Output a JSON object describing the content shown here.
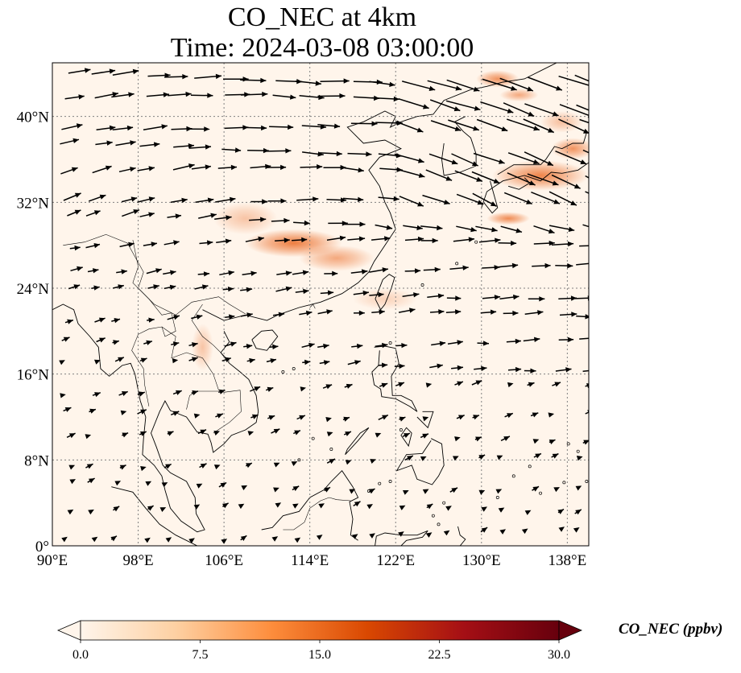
{
  "title": {
    "line1": "CO_NEC at 4km",
    "line2": "Time: 2024-03-08 03:00:00"
  },
  "map": {
    "extent": {
      "lon": [
        90,
        140
      ],
      "lat": [
        0,
        45
      ]
    },
    "lon_ticks": [
      90,
      98,
      106,
      114,
      122,
      130,
      138
    ],
    "lon_tick_labels": [
      "90°E",
      "98°E",
      "106°E",
      "114°E",
      "122°E",
      "130°E",
      "138°E"
    ],
    "lat_ticks": [
      0,
      8,
      16,
      24,
      32,
      40
    ],
    "lat_tick_labels": [
      "0°",
      "8°N",
      "16°N",
      "24°N",
      "32°N",
      "40°N"
    ],
    "gridlines": true,
    "background_color": "#fff5eb",
    "plume_color": "#e8590c",
    "plumes": [
      {
        "lon": 112.5,
        "lat": 28.2,
        "rlon": 4.5,
        "rlat": 1.3,
        "intensity": 0.85
      },
      {
        "lon": 116.5,
        "lat": 26.8,
        "rlon": 3.5,
        "rlat": 1.2,
        "intensity": 0.55
      },
      {
        "lon": 108.0,
        "lat": 30.5,
        "rlon": 3.0,
        "rlat": 1.5,
        "intensity": 0.35
      },
      {
        "lon": 104.0,
        "lat": 18.5,
        "rlon": 1.0,
        "rlat": 2.2,
        "intensity": 0.35
      },
      {
        "lon": 135.5,
        "lat": 34.5,
        "rlon": 4.5,
        "rlat": 1.4,
        "intensity": 0.8
      },
      {
        "lon": 138.5,
        "lat": 37.0,
        "rlon": 2.0,
        "rlat": 1.0,
        "intensity": 0.7
      },
      {
        "lon": 132.5,
        "lat": 30.5,
        "rlon": 2.0,
        "rlat": 0.6,
        "intensity": 0.75
      },
      {
        "lon": 131.5,
        "lat": 43.5,
        "rlon": 2.0,
        "rlat": 0.8,
        "intensity": 0.7
      },
      {
        "lon": 133.5,
        "lat": 42.0,
        "rlon": 1.8,
        "rlat": 0.6,
        "intensity": 0.55
      },
      {
        "lon": 137.5,
        "lat": 39.5,
        "rlon": 2.0,
        "rlat": 1.0,
        "intensity": 0.4
      },
      {
        "lon": 121.0,
        "lat": 23.0,
        "rlon": 3.0,
        "rlat": 1.0,
        "intensity": 0.25
      }
    ]
  },
  "colorbar": {
    "label": "CO_NEC (ppbv)",
    "tick_values": [
      0.0,
      7.5,
      15.0,
      22.5,
      30.0
    ],
    "tick_labels": [
      "0.0",
      "7.5",
      "15.0",
      "22.5",
      "30.0"
    ],
    "colors": [
      "#fff5eb",
      "#fdd0a2",
      "#fd8d3c",
      "#d94801",
      "#a50f15",
      "#67000d"
    ],
    "extend": "both"
  }
}
